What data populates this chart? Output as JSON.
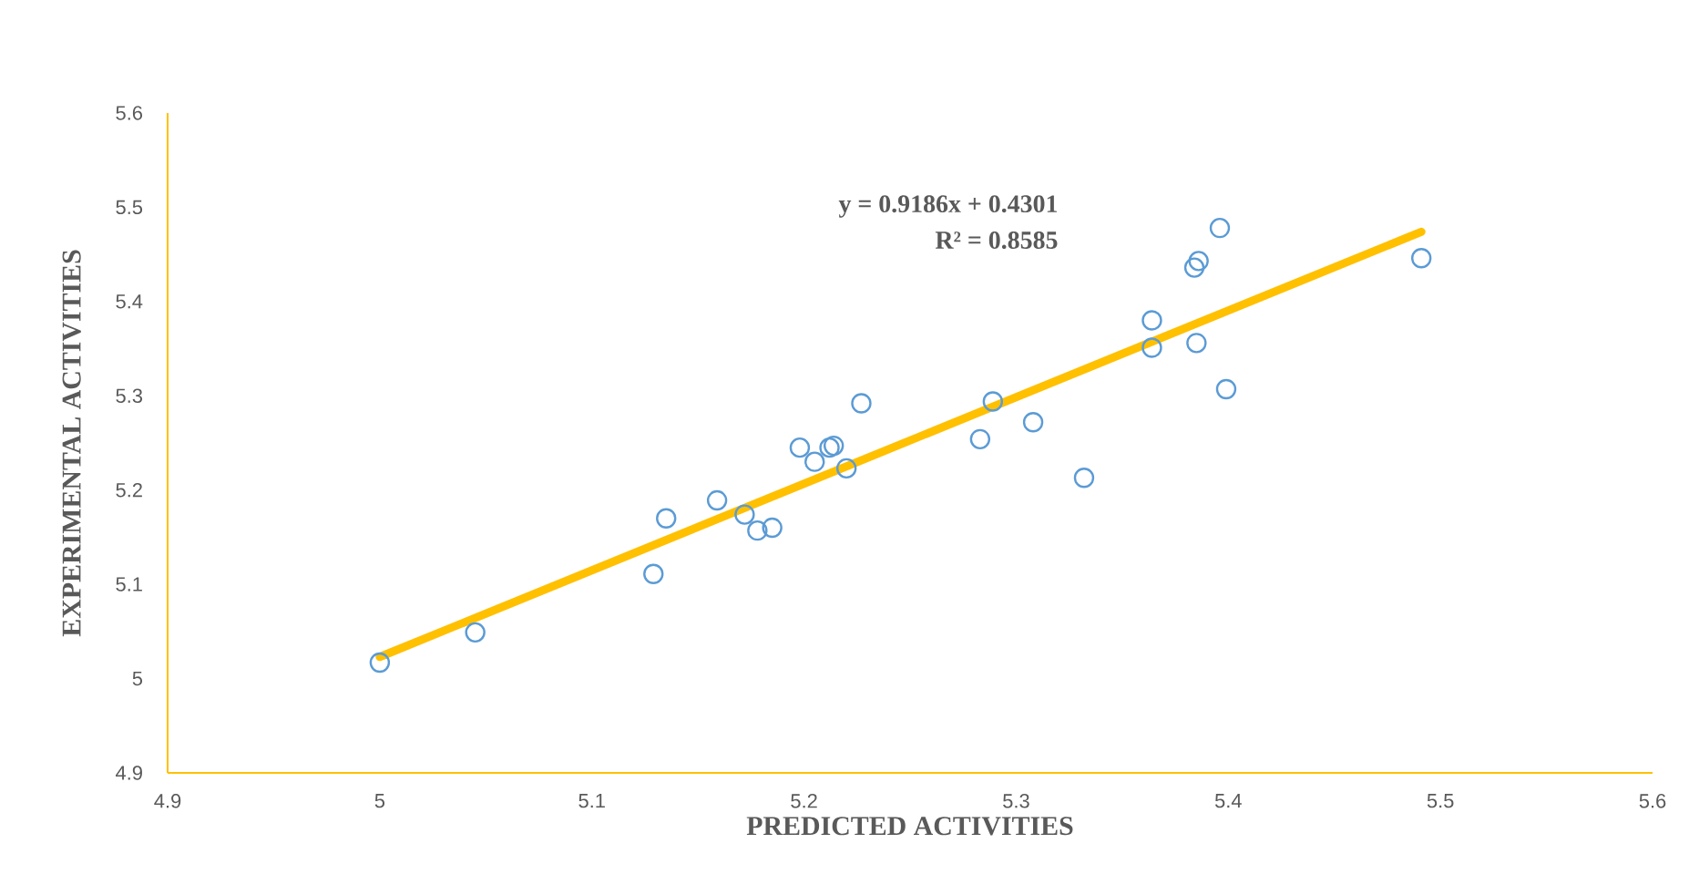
{
  "chart_data": {
    "type": "scatter",
    "xlabel": "PREDICTED ACTIVITIES",
    "ylabel": "EXPERIMENTAL ACTIVITIES",
    "annotations": [
      "y = 0.9186x + 0.4301",
      "R² = 0.8585"
    ],
    "xlim": [
      4.9,
      5.6
    ],
    "ylim": [
      4.9,
      5.6
    ],
    "xticks": [
      4.9,
      5,
      5.1,
      5.2,
      5.3,
      5.4,
      5.5,
      5.6
    ],
    "yticks": [
      4.9,
      5,
      5.1,
      5.2,
      5.3,
      5.4,
      5.5,
      5.6
    ],
    "grid": false,
    "series": [
      {
        "marker": "circle",
        "color": "#5b9bd5",
        "x": [
          5.0,
          5.045,
          5.129,
          5.135,
          5.159,
          5.172,
          5.178,
          5.185,
          5.198,
          5.205,
          5.212,
          5.214,
          5.22,
          5.227,
          5.283,
          5.289,
          5.308,
          5.332,
          5.364,
          5.364,
          5.385,
          5.384,
          5.386,
          5.396,
          5.399,
          5.491
        ],
        "values": [
          5.017,
          5.049,
          5.111,
          5.17,
          5.189,
          5.174,
          5.157,
          5.16,
          5.245,
          5.23,
          5.245,
          5.247,
          5.223,
          5.292,
          5.254,
          5.294,
          5.272,
          5.213,
          5.351,
          5.38,
          5.356,
          5.436,
          5.443,
          5.478,
          5.307,
          5.446
        ]
      },
      {
        "type": "line",
        "marker": "none",
        "color": "#ffc000",
        "x": [
          5.0,
          5.491
        ],
        "values": [
          5.023,
          5.474
        ]
      }
    ]
  }
}
